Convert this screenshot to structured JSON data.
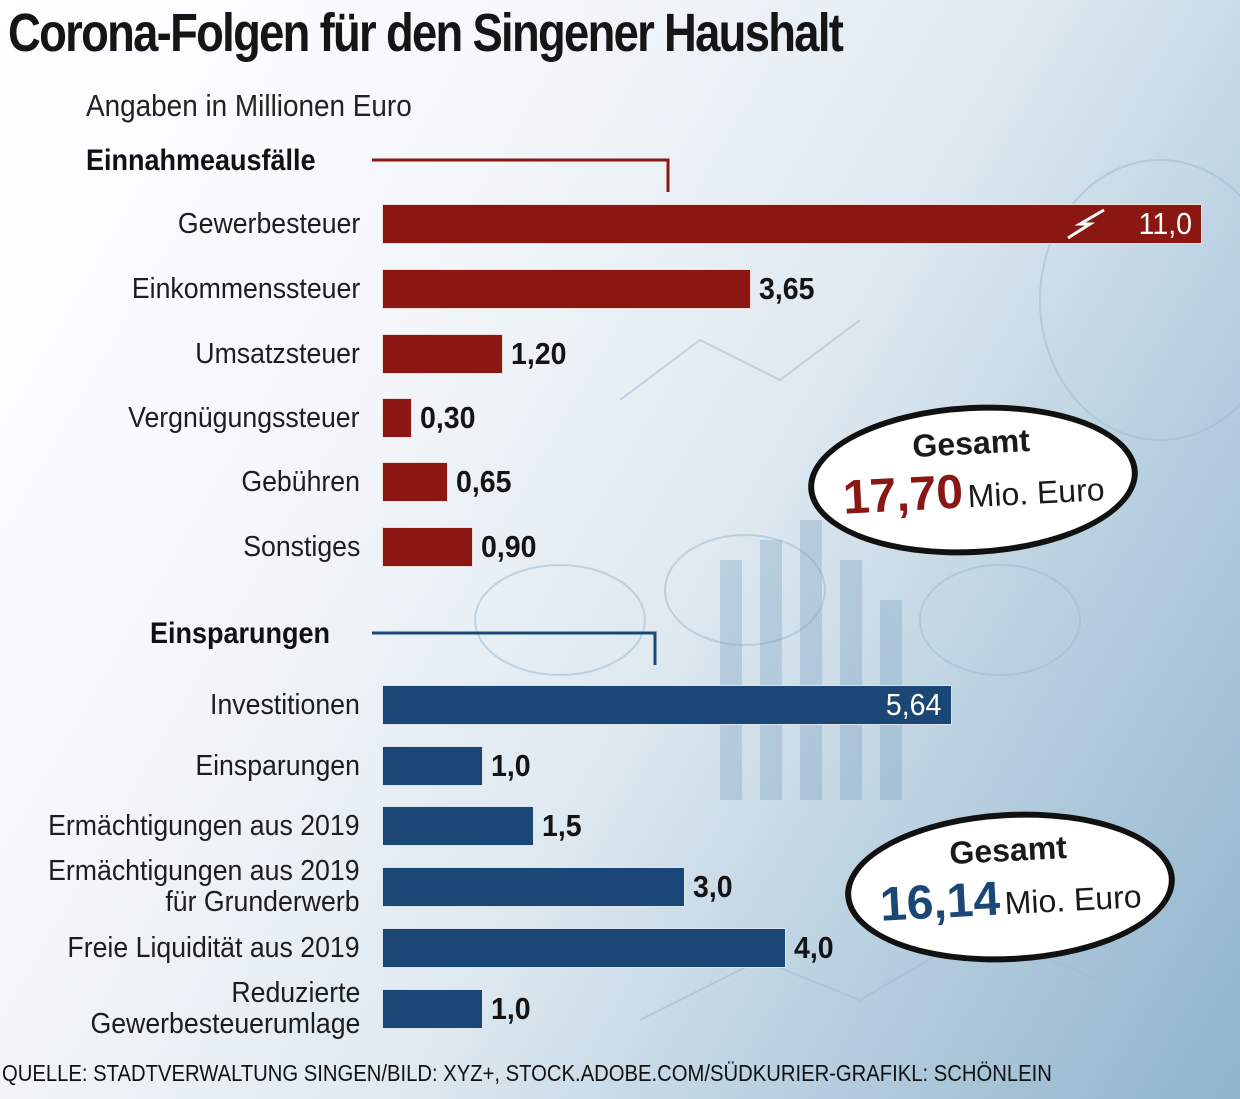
{
  "title": "Corona-Folgen für den Singener Haushalt",
  "subtitle": "Angaben in Millionen Euro",
  "source": "QUELLE: STADTVERWALTUNG SINGEN/BILD: XYZ+, STOCK.ADOBE.COM/SÜDKURIER-GRAFIKL: SCHÖNLEIN",
  "colors": {
    "einnahme": "#8b1712",
    "einspar": "#1b4776"
  },
  "totals": {
    "einnahme": {
      "label": "Gesamt",
      "value": "17,70",
      "unit": "Mio. Euro"
    },
    "einspar": {
      "label": "Gesamt",
      "value": "16,14",
      "unit": "Mio. Euro"
    }
  },
  "chart_data": [
    {
      "type": "bar",
      "title": "Einnahmeausfälle",
      "categories": [
        "Gewerbesteuer",
        "Einkommenssteuer",
        "Umsatzsteuer",
        "Vergnügungssteuer",
        "Gebühren",
        "Sonstiges"
      ],
      "values": [
        11.0,
        3.65,
        1.2,
        0.3,
        0.65,
        0.9
      ],
      "value_labels": [
        "11,0",
        "3,65",
        "1,20",
        "0,30",
        "0,65",
        "0,90"
      ],
      "axis_break_on_first": true
    },
    {
      "type": "bar",
      "title": "Einsparungen",
      "categories": [
        "Investitionen",
        "Einsparungen",
        "Ermächtigungen aus 2019",
        "Ermächtigungen aus 2019\nfür Grunderwerb",
        "Freie Liquidität aus 2019",
        "Reduzierte\nGewerbesteuerumlage"
      ],
      "values": [
        5.64,
        1.0,
        1.5,
        3.0,
        4.0,
        1.0
      ],
      "value_labels": [
        "5,64",
        "1,0",
        "1,5",
        "3,0",
        "4,0",
        "1,0"
      ]
    }
  ]
}
